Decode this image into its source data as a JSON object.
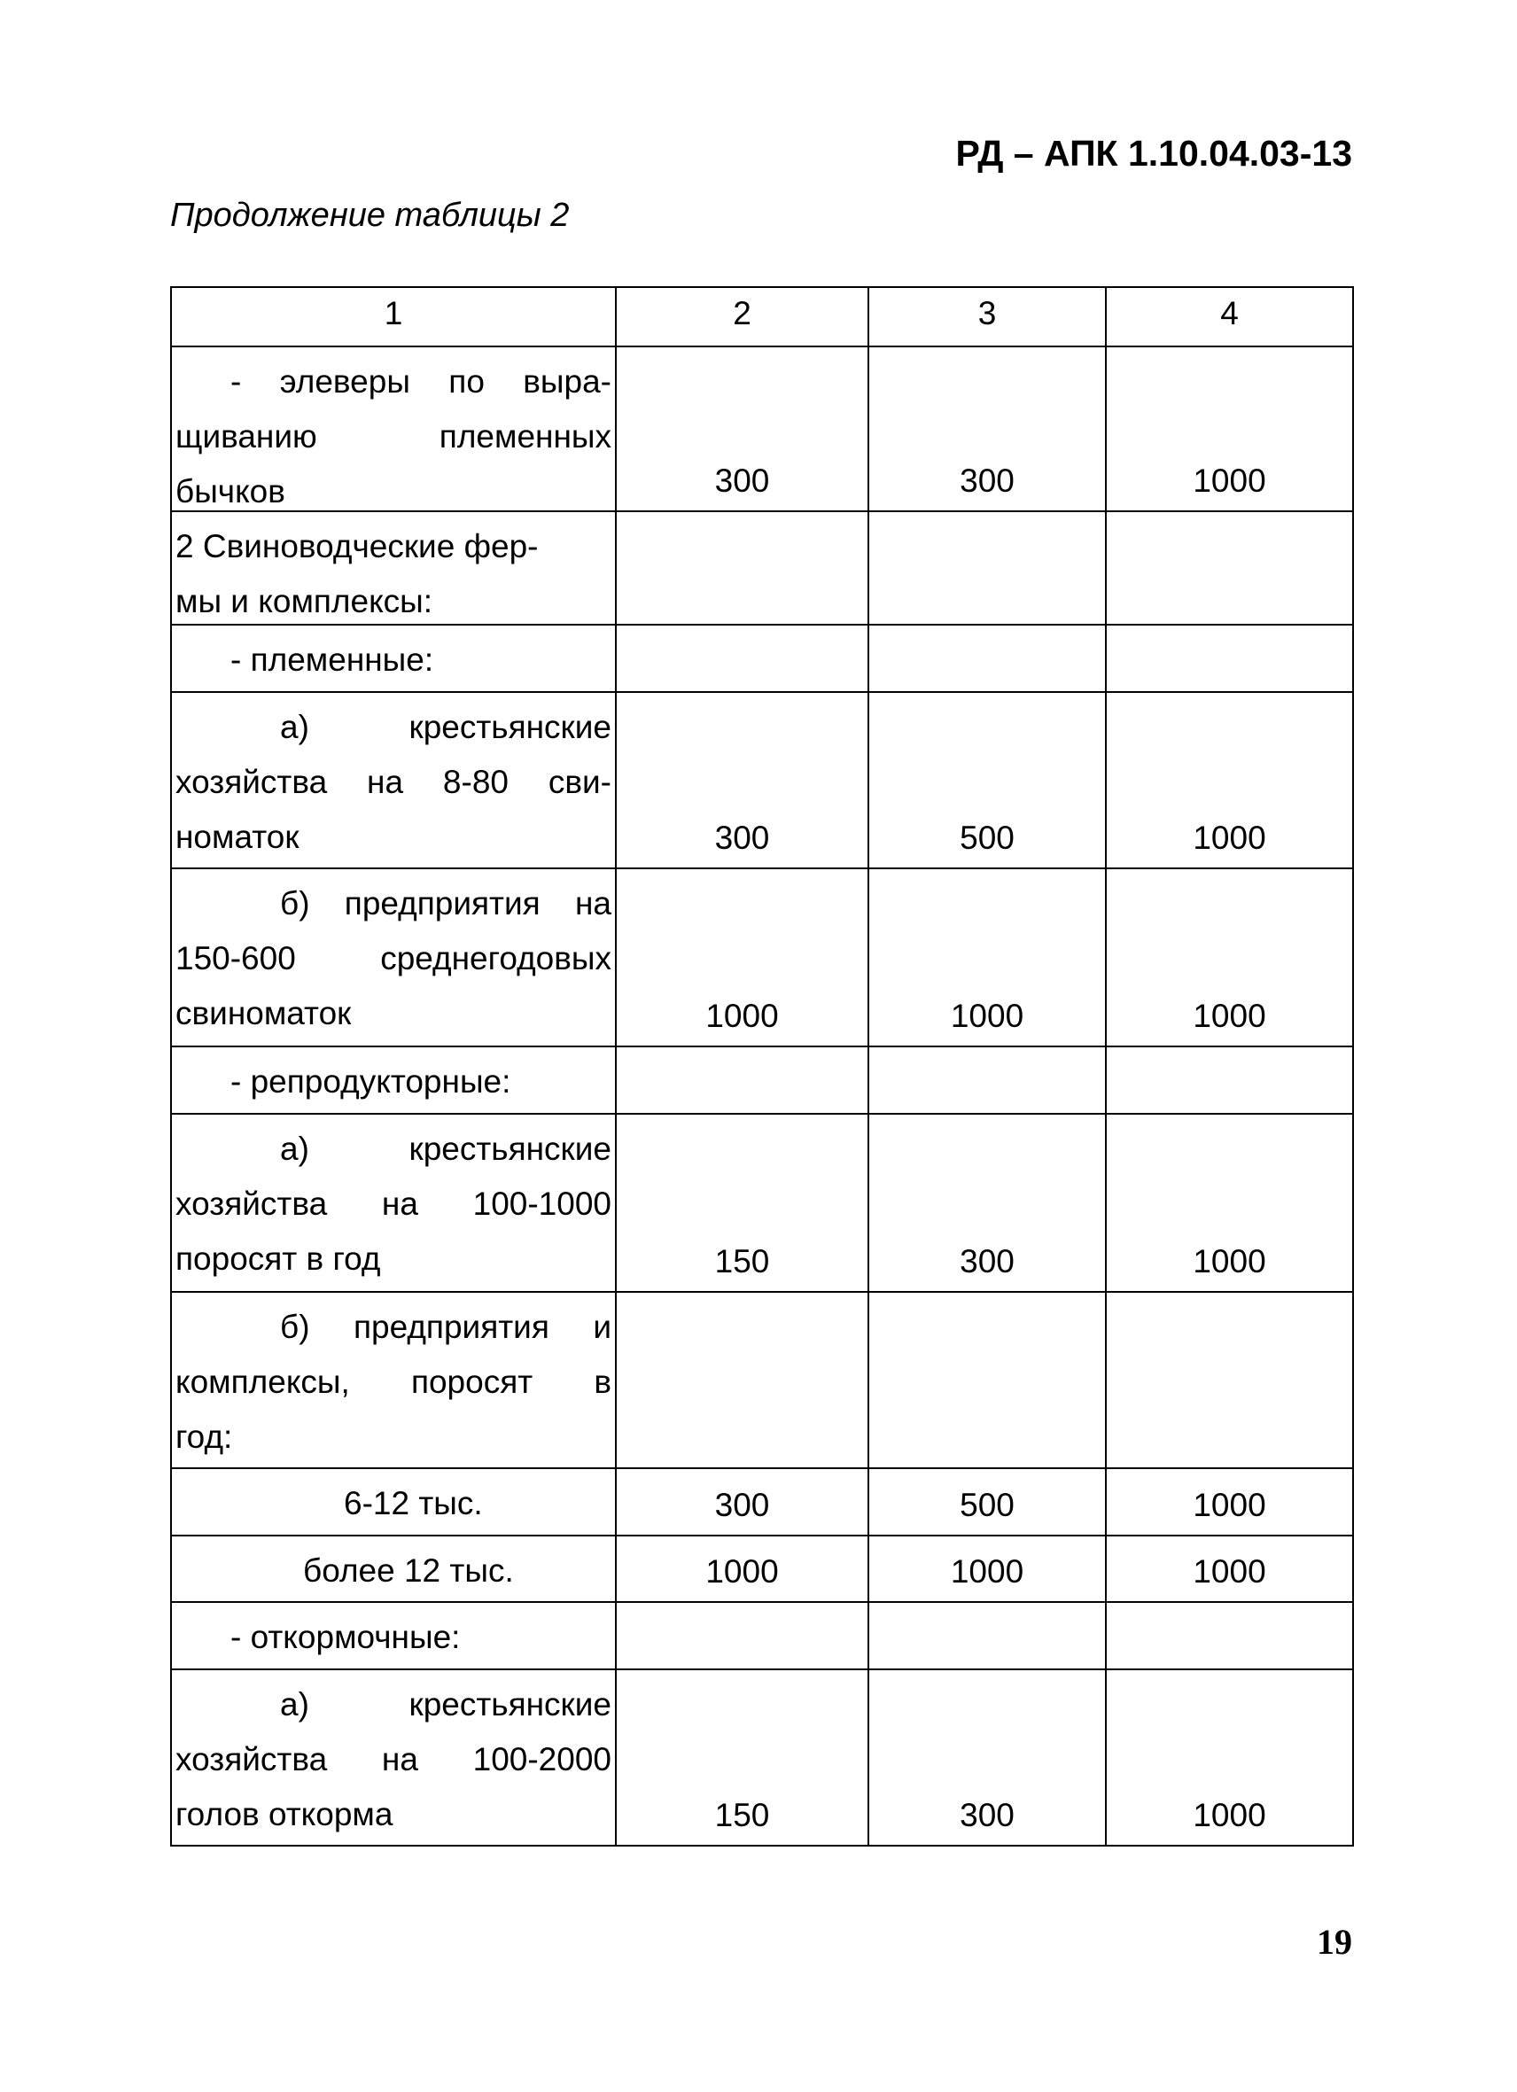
{
  "document_code": "РД – АПК 1.10.04.03-13",
  "continuation_title": "Продолжение таблицы 2",
  "page_number": "19",
  "table": {
    "header": [
      "1",
      "2",
      "3",
      "4"
    ],
    "rows": [
      {
        "lines": [
          "- элеверы по выра-",
          "щиванию племенных",
          "бычков"
        ],
        "indent": "dash",
        "justify": true,
        "values": [
          "300",
          "300",
          "1000"
        ]
      },
      {
        "lines": [
          "2 Свиноводческие фер-",
          "мы и комплексы:"
        ],
        "indent": "none",
        "justify": false,
        "values": [
          "",
          "",
          ""
        ]
      },
      {
        "lines": [
          "- племенные:"
        ],
        "indent": "dash",
        "justify": false,
        "values": [
          "",
          "",
          ""
        ]
      },
      {
        "lines": [
          "а) крестьянские",
          "хозяйства на 8-80 сви-",
          "номаток"
        ],
        "indent": "item",
        "justify": true,
        "values": [
          "300",
          "500",
          "1000"
        ]
      },
      {
        "lines": [
          "б) предприятия на",
          "150-600 среднегодовых",
          "свиноматок"
        ],
        "indent": "item",
        "justify": true,
        "values": [
          "1000",
          "1000",
          "1000"
        ]
      },
      {
        "lines": [
          "- репродукторные:"
        ],
        "indent": "dash",
        "justify": false,
        "values": [
          "",
          "",
          ""
        ]
      },
      {
        "lines": [
          "а) крестьянские",
          "хозяйства на 100-1000",
          "поросят в год"
        ],
        "indent": "item",
        "justify": true,
        "values": [
          "150",
          "300",
          "1000"
        ]
      },
      {
        "lines": [
          "б) предприятия и",
          "комплексы, поросят в",
          "год:"
        ],
        "indent": "item",
        "justify": true,
        "values": [
          "",
          "",
          ""
        ]
      },
      {
        "lines": [
          "6-12 тыс."
        ],
        "indent": "deep",
        "justify": false,
        "values": [
          "300",
          "500",
          "1000"
        ]
      },
      {
        "lines": [
          "более 12 тыс."
        ],
        "indent": "mid",
        "justify": false,
        "values": [
          "1000",
          "1000",
          "1000"
        ]
      },
      {
        "lines": [
          "- откормочные:"
        ],
        "indent": "dash",
        "justify": false,
        "values": [
          "",
          "",
          ""
        ]
      },
      {
        "lines": [
          "а) крестьянские",
          "хозяйства на 100-2000",
          "голов откорма"
        ],
        "indent": "item",
        "justify": true,
        "values": [
          "150",
          "300",
          "1000"
        ]
      }
    ]
  }
}
